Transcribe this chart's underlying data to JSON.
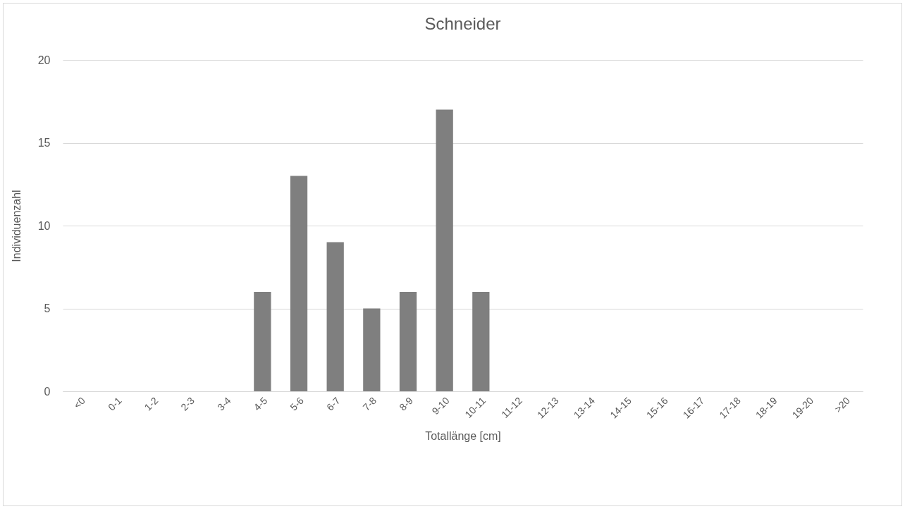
{
  "chart_data": {
    "type": "bar",
    "title": "Schneider",
    "xlabel": "Totallänge [cm]",
    "ylabel": "Individuenzahl",
    "categories": [
      "<0",
      "0-1",
      "1-2",
      "2-3",
      "3-4",
      "4-5",
      "5-6",
      "6-7",
      "7-8",
      "8-9",
      "9-10",
      "10-11",
      "11-12",
      "12-13",
      "13-14",
      "14-15",
      "15-16",
      "16-17",
      "17-18",
      "18-19",
      "19-20",
      ">20"
    ],
    "values": [
      0,
      0,
      0,
      0,
      0,
      6,
      13,
      9,
      5,
      6,
      17,
      6,
      0,
      0,
      0,
      0,
      0,
      0,
      0,
      0,
      0,
      0
    ],
    "color": "#7f7f7f",
    "ylim": [
      0,
      20
    ],
    "yticks": [
      0,
      5,
      10,
      15,
      20
    ],
    "grid": "y"
  }
}
